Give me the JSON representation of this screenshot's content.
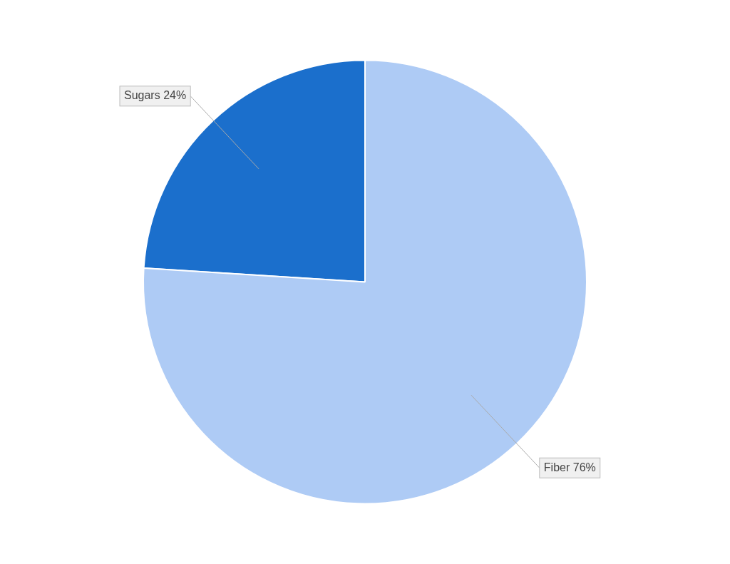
{
  "chart_data": {
    "type": "pie",
    "categories": [
      "Sugars",
      "Fiber"
    ],
    "values": [
      24,
      76
    ],
    "colors": [
      "#1B6FCC",
      "#AECBF5"
    ],
    "data_labels": true,
    "value_labels": [
      "Sugars 24%",
      "Fiber 76%"
    ]
  }
}
